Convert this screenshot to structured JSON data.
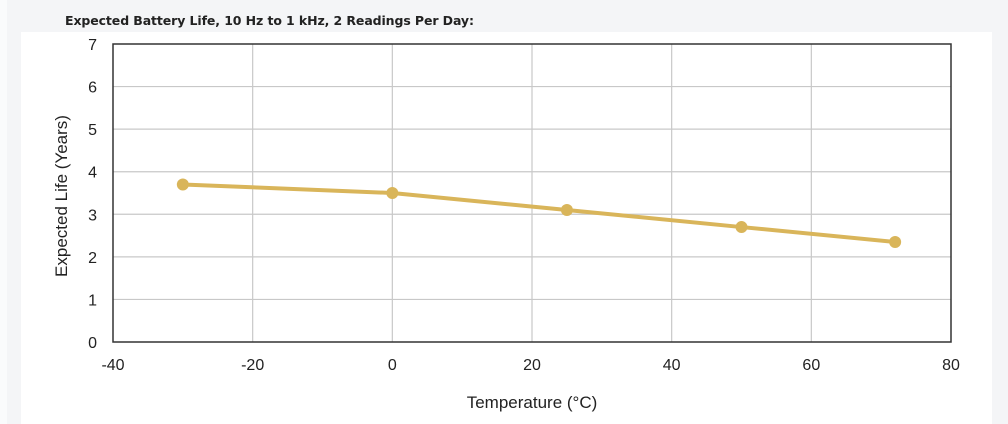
{
  "chart_data": {
    "type": "line",
    "title": "Expected Battery Life, 10 Hz to 1 kHz, 2 Readings Per Day:",
    "xlabel": "Temperature (°C)",
    "ylabel": "Expected Life (Years)",
    "xlim": [
      -40,
      80
    ],
    "ylim": [
      0,
      7
    ],
    "xticks": [
      -40,
      -20,
      0,
      20,
      40,
      60,
      80
    ],
    "yticks": [
      0,
      1,
      2,
      3,
      4,
      5,
      6,
      7
    ],
    "xtick_labels": [
      "-40",
      "-20",
      "0",
      "20",
      "40",
      "60",
      "80"
    ],
    "ytick_labels": [
      "0",
      "1",
      "2",
      "3",
      "4",
      "5",
      "6",
      "7"
    ],
    "grid": true,
    "legend": "none",
    "series": [
      {
        "name": "Expected Life",
        "color": "#d9b55a",
        "x": [
          -30,
          0,
          25,
          50,
          72
        ],
        "y": [
          3.7,
          3.5,
          3.1,
          2.7,
          2.35
        ]
      }
    ]
  }
}
